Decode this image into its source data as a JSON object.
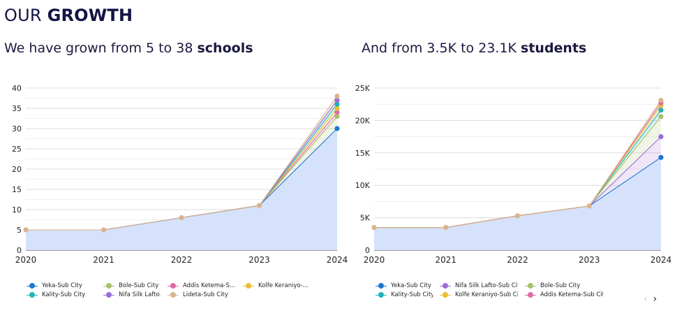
{
  "header": {
    "title_prefix": "OUR ",
    "title_bold": "GROWTH"
  },
  "charts": {
    "schools": {
      "subtitle_prefix": "We have grown from 5 to 38 ",
      "subtitle_bold": "schools"
    },
    "students": {
      "subtitle_prefix": "And from 3.5K to 23.1K  ",
      "subtitle_bold": "students"
    }
  },
  "legend_schools": [
    {
      "label": "Yeka-Sub City",
      "color": "#1f77d4"
    },
    {
      "label": "Bole-Sub City",
      "color": "#a8c26a"
    },
    {
      "label": "Addis Ketema-S...",
      "color": "#e06aa6"
    },
    {
      "label": "Kolfe Keraniyo-...",
      "color": "#e8bf2e"
    },
    {
      "label": "Kality-Sub City",
      "color": "#1fb3b8"
    },
    {
      "label": "Nifa Silk Lafto-S...",
      "color": "#9b6cd6"
    },
    {
      "label": "Lideta-Sub City",
      "color": "#d9b48a"
    }
  ],
  "legend_students": [
    {
      "label": "Yeka-Sub City",
      "color": "#1f77d4"
    },
    {
      "label": "Nifa Silk Lafto-Sub City",
      "color": "#9b6cd6"
    },
    {
      "label": "Bole-Sub City",
      "color": "#a8c26a"
    },
    {
      "label": "Kality-Sub City",
      "color": "#1fb3b8"
    },
    {
      "label": "Kolfe Keraniyo-Sub City",
      "color": "#e8bf2e"
    },
    {
      "label": "Addis Ketema-Sub City",
      "color": "#e06aa6"
    }
  ],
  "pager": {
    "prev": "‹",
    "next": "›"
  },
  "chart_data": [
    {
      "type": "area",
      "title": "We have grown from 5 to 38 schools",
      "x": [
        "2020",
        "2021",
        "2022",
        "2023",
        "2024"
      ],
      "ylim": [
        0,
        40
      ],
      "yticks": [
        0,
        5,
        10,
        15,
        20,
        25,
        30,
        35,
        40
      ],
      "ytick_labels": [
        "0",
        "5",
        "10",
        "15",
        "20",
        "25",
        "30",
        "35",
        "40"
      ],
      "grid": true,
      "series": [
        {
          "name": "Yeka-Sub City",
          "color": "#1f77d4",
          "values": [
            5,
            5,
            8,
            11,
            30
          ]
        },
        {
          "name": "Bole-Sub City",
          "color": "#a8c26a",
          "values": [
            5,
            5,
            8,
            11,
            33
          ]
        },
        {
          "name": "Addis Ketema-Sub City",
          "color": "#e06aa6",
          "values": [
            5,
            5,
            8,
            11,
            34
          ]
        },
        {
          "name": "Kolfe Keraniyo-Sub City",
          "color": "#e8bf2e",
          "values": [
            5,
            5,
            8,
            11,
            35
          ]
        },
        {
          "name": "Kality-Sub City",
          "color": "#1fb3b8",
          "values": [
            5,
            5,
            8,
            11,
            36
          ]
        },
        {
          "name": "Nifa Silk Lafto-Sub City",
          "color": "#9b6cd6",
          "values": [
            5,
            5,
            8,
            11,
            37
          ]
        },
        {
          "name": "Lideta-Sub City",
          "color": "#d9b48a",
          "values": [
            5,
            5,
            8,
            11,
            38
          ]
        }
      ]
    },
    {
      "type": "area",
      "title": "And from 3.5K to 23.1K students",
      "x": [
        "2020",
        "2021",
        "2022",
        "2023",
        "2024"
      ],
      "ylim": [
        0,
        25000
      ],
      "yticks": [
        0,
        5000,
        10000,
        15000,
        20000,
        25000
      ],
      "ytick_labels": [
        "0",
        "5K",
        "10K",
        "15K",
        "20K",
        "25K"
      ],
      "grid": true,
      "series": [
        {
          "name": "Yeka-Sub City",
          "color": "#1f77d4",
          "values": [
            3500,
            3500,
            5300,
            6800,
            14300
          ]
        },
        {
          "name": "Nifa Silk Lafto-Sub City",
          "color": "#9b6cd6",
          "values": [
            3500,
            3500,
            5300,
            6800,
            17500
          ]
        },
        {
          "name": "Bole-Sub City",
          "color": "#a8c26a",
          "values": [
            3500,
            3500,
            5300,
            6800,
            20600
          ]
        },
        {
          "name": "Kality-Sub City",
          "color": "#1fb3b8",
          "values": [
            3500,
            3500,
            5300,
            6800,
            21600
          ]
        },
        {
          "name": "Kolfe Keraniyo-Sub City",
          "color": "#e8bf2e",
          "values": [
            3500,
            3500,
            5300,
            6800,
            22300
          ]
        },
        {
          "name": "Addis Ketema-Sub City",
          "color": "#e06aa6",
          "values": [
            3500,
            3500,
            5300,
            6800,
            22700
          ]
        },
        {
          "name": "Lideta-Sub City",
          "color": "#d9b48a",
          "values": [
            3500,
            3500,
            5300,
            6800,
            23100
          ]
        }
      ]
    }
  ]
}
